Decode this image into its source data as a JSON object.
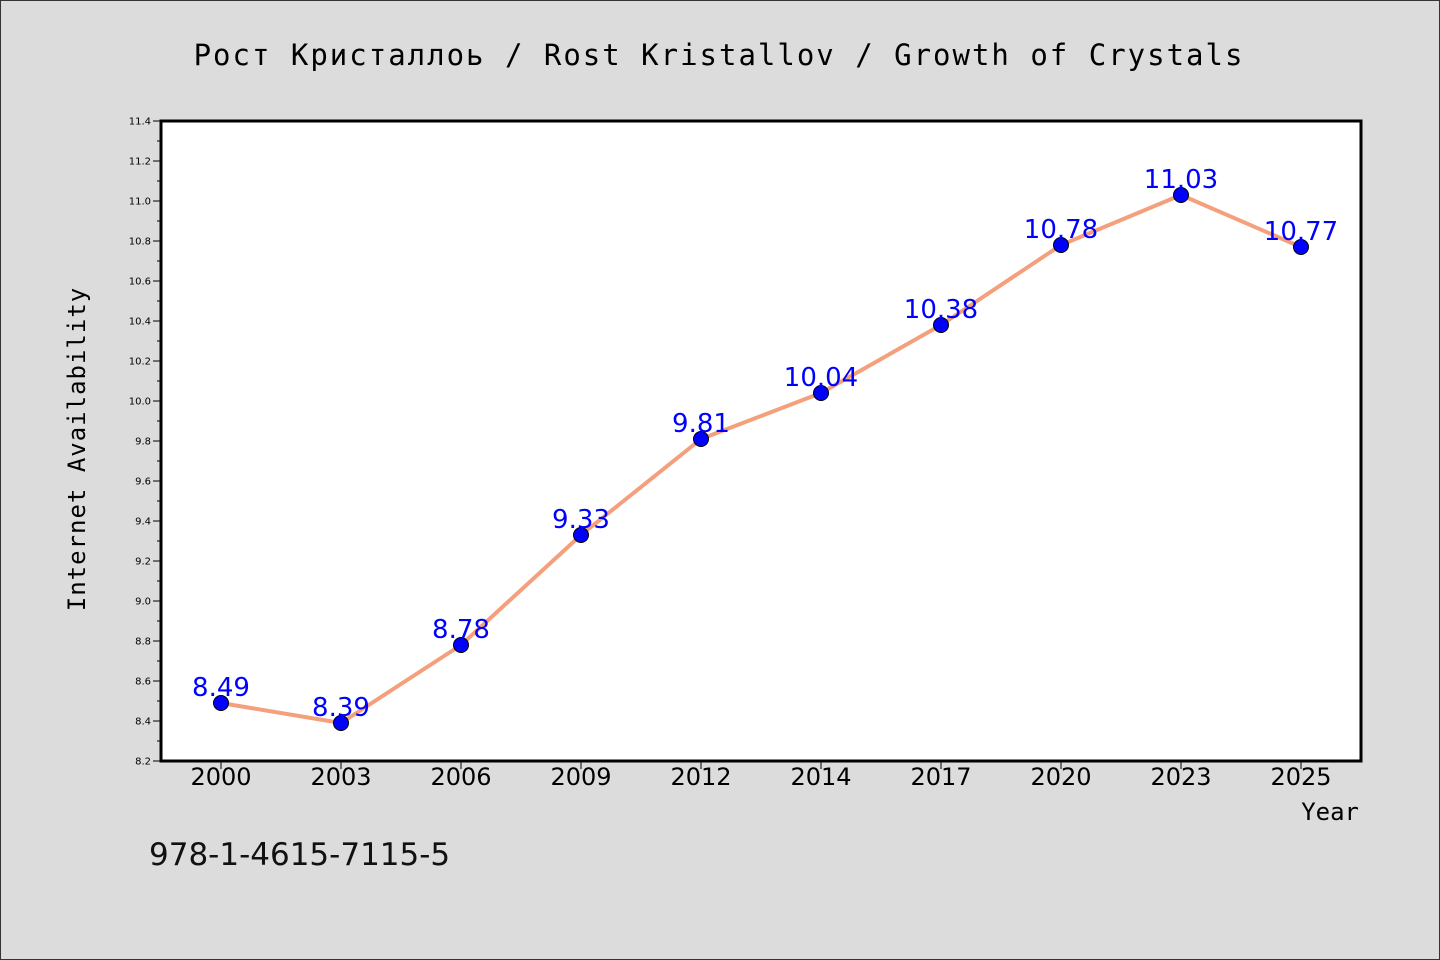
{
  "chart_data": {
    "type": "line",
    "title": "Рост Кристаллоь / Rost Kristallov / Growth of Crystals",
    "xlabel": "Year",
    "ylabel": "Internet Availability",
    "categories": [
      "2000",
      "2003",
      "2006",
      "2009",
      "2012",
      "2014",
      "2017",
      "2020",
      "2023",
      "2025"
    ],
    "series": [
      {
        "values": [
          8.49,
          8.39,
          8.78,
          9.33,
          9.81,
          10.04,
          10.38,
          10.78,
          11.03,
          10.77
        ],
        "labels": [
          "8.49",
          "8.39",
          "8.78",
          "9.33",
          "9.81",
          "10.04",
          "10.38",
          "10.78",
          "11.03",
          "10.77"
        ],
        "line_color": "#f4a07c",
        "marker_color": "#0000ff"
      }
    ],
    "ylim": [
      8.2,
      11.4
    ],
    "yticks": [
      "8.2",
      "8.4",
      "8.6",
      "8.8",
      "9.0",
      "9.2",
      "9.4",
      "9.6",
      "9.8",
      "10.0",
      "10.2",
      "10.4",
      "10.6",
      "10.8",
      "11.0",
      "11.2",
      "11.4"
    ],
    "grid": false,
    "label_color": "#0000ff"
  },
  "annotation": {
    "isbn": "978-1-4615-7115-5"
  }
}
